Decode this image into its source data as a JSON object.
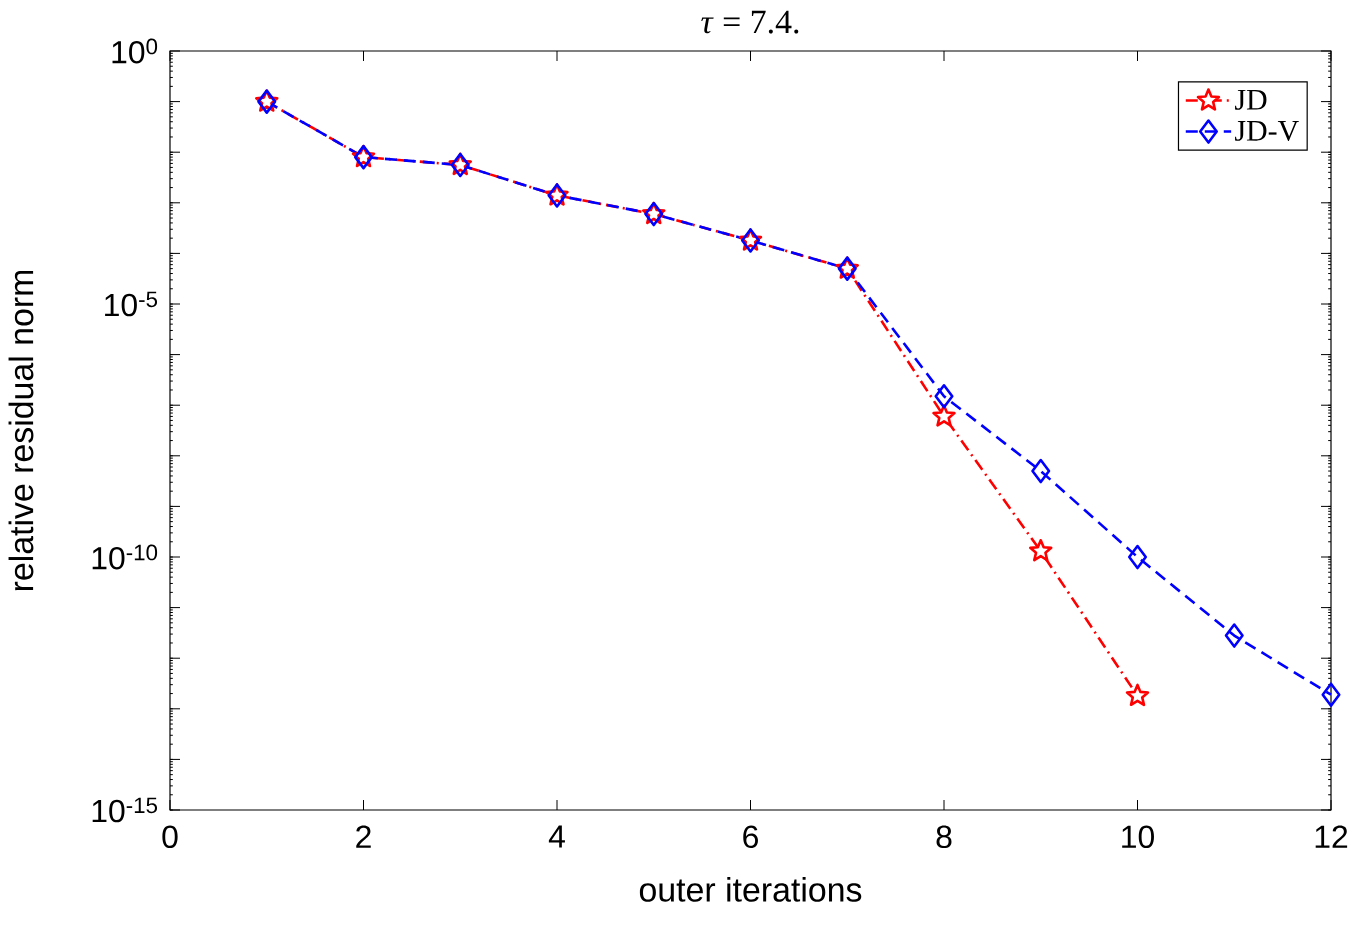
{
  "chart_data": {
    "type": "line",
    "title": "*τ* = 7.4.",
    "xlabel": "outer iterations",
    "ylabel": "relative residual norm",
    "x": [
      1,
      2,
      3,
      4,
      5,
      6,
      7,
      8,
      9,
      10,
      11,
      12
    ],
    "series": [
      {
        "name": "JD",
        "color": "#ff0000",
        "marker": "star",
        "line_style": "dashdot",
        "values": [
          0.1,
          0.008,
          0.0056,
          0.0014,
          0.0006,
          0.00018,
          5e-05,
          6e-08,
          1.3e-10,
          1.8e-13,
          null,
          null
        ]
      },
      {
        "name": "JD-V",
        "color": "#0000ff",
        "marker": "diamond",
        "line_style": "dashed",
        "values": [
          0.1,
          0.008,
          0.0056,
          0.0014,
          0.0006,
          0.00018,
          5e-05,
          1.5e-07,
          5e-09,
          1e-10,
          2.8e-12,
          1.9e-13
        ]
      }
    ],
    "log": "y",
    "xlim": [
      0,
      12
    ],
    "xticks": [
      0,
      2,
      4,
      6,
      8,
      10,
      12
    ],
    "ylim": [
      1e-15,
      1
    ],
    "yticks": [
      {
        "value": 1e-15,
        "label": "10$^{-15}$"
      },
      {
        "value": 1e-14,
        "label": null
      },
      {
        "value": 1e-13,
        "label": null
      },
      {
        "value": 1e-12,
        "label": null
      },
      {
        "value": 1e-11,
        "label": null
      },
      {
        "value": 1e-10,
        "label": "10$^{-10}$"
      },
      {
        "value": 1e-09,
        "label": null
      },
      {
        "value": 1e-08,
        "label": null
      },
      {
        "value": 1e-07,
        "label": null
      },
      {
        "value": 1e-06,
        "label": null
      },
      {
        "value": 1e-05,
        "label": "10$^{-5}$"
      },
      {
        "value": 0.0001,
        "label": null
      },
      {
        "value": 0.001,
        "label": null
      },
      {
        "value": 0.01,
        "label": null
      },
      {
        "value": 0.1,
        "label": null
      },
      {
        "value": 1,
        "label": "10$^{0}$"
      }
    ],
    "legend": "top right"
  }
}
